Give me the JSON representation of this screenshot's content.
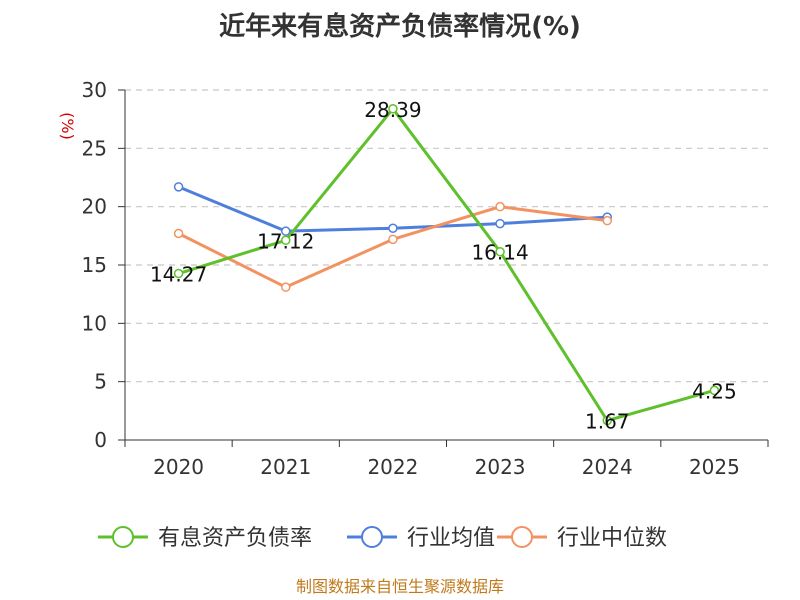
{
  "chart_data": {
    "type": "line",
    "title": "近年来有息资产负债率情况(%)",
    "ylabel": "(%)",
    "xlabel": "",
    "categories": [
      "2020",
      "2021",
      "2022",
      "2023",
      "2024",
      "2025"
    ],
    "ylim": [
      0,
      30
    ],
    "yticks": [
      0,
      5,
      10,
      15,
      20,
      25,
      30
    ],
    "grid": true,
    "legend_position": "bottom",
    "series": [
      {
        "name": "有息资产负债率",
        "color": "#5ec02a",
        "values": [
          14.27,
          17.12,
          28.39,
          16.14,
          1.67,
          4.25
        ],
        "labels": [
          "14.27",
          "17.12",
          "28.39",
          "16.14",
          "1.67",
          "4.25"
        ]
      },
      {
        "name": "行业均值",
        "color": "#4e7fdc",
        "values": [
          21.7,
          17.9,
          18.15,
          18.55,
          19.1,
          null
        ]
      },
      {
        "name": "行业中位数",
        "color": "#f39261",
        "values": [
          17.7,
          13.1,
          17.2,
          20.0,
          18.8,
          null
        ]
      }
    ]
  },
  "footer": {
    "source": "制图数据来自恒生聚源数据库"
  }
}
